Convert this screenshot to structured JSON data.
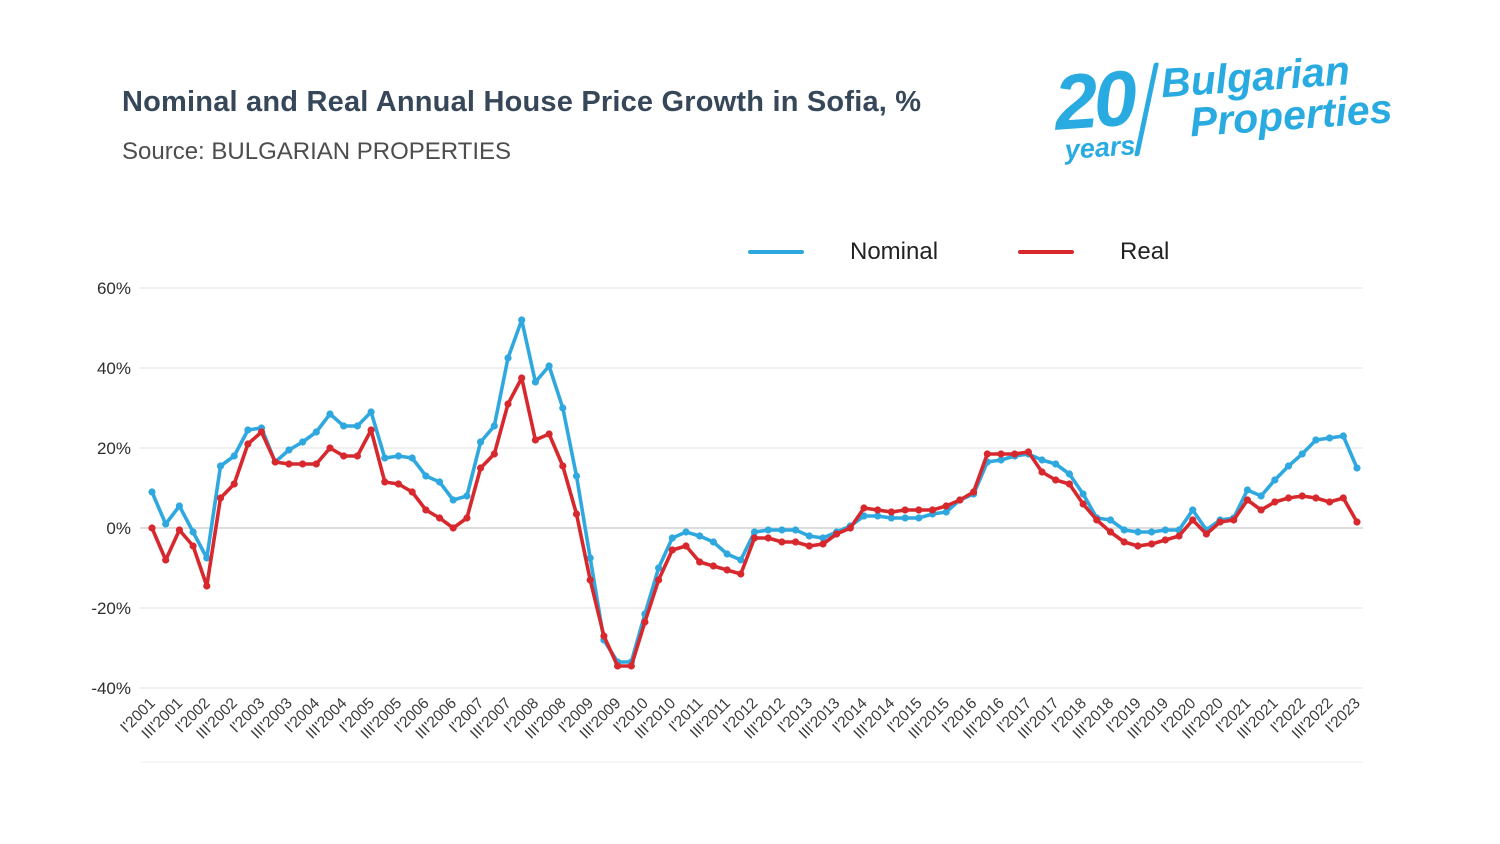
{
  "header": {
    "title": "Nominal and Real Annual House Price Growth in Sofia, %",
    "source": "Source: BULGARIAN PROPERTIES"
  },
  "logo": {
    "number": "20",
    "years": "years",
    "brand_line1": "Bulgarian",
    "brand_line2": "Properties",
    "color": "#29abe2"
  },
  "legend": [
    {
      "label": "Nominal",
      "color": "#2fa8df"
    },
    {
      "label": "Real",
      "color": "#d7282e"
    }
  ],
  "chart_data": {
    "type": "line",
    "title": "Nominal and Real Annual House Price Growth in Sofia, %",
    "xlabel": "",
    "ylabel": "",
    "ylim": [
      -40,
      60
    ],
    "grid": "horizontal",
    "legend_position": "top",
    "y_ticks": [
      {
        "v": 60,
        "label": "60%"
      },
      {
        "v": 40,
        "label": "40%"
      },
      {
        "v": 20,
        "label": "20%"
      },
      {
        "v": 0,
        "label": "0%"
      },
      {
        "v": -20,
        "label": "-20%"
      },
      {
        "v": -40,
        "label": "-40%"
      }
    ],
    "points_per_tick": 2,
    "x_tick_labels": [
      "I'2001",
      "III'2001",
      "I'2002",
      "III'2002",
      "I'2003",
      "III'2003",
      "I'2004",
      "III'2004",
      "I'2005",
      "III'2005",
      "I'2006",
      "III'2006",
      "I'2007",
      "III'2007",
      "I'2008",
      "III'2008",
      "I'2009",
      "III'2009",
      "I'2010",
      "III'2010",
      "I'2011",
      "III'2011",
      "I'2012",
      "III'2012",
      "I'2013",
      "III'2013",
      "I'2014",
      "III'2014",
      "I'2015",
      "III'2015",
      "I'2016",
      "III'2016",
      "I'2017",
      "III'2017",
      "I'2018",
      "III'2018",
      "I'2019",
      "III'2019",
      "I'2020",
      "III'2020",
      "I'2021",
      "III'2021",
      "I'2022",
      "III'2022",
      "I'2023"
    ],
    "series": [
      {
        "name": "Nominal",
        "color": "#2fa8df",
        "values": [
          9,
          1,
          5.5,
          -1,
          -7.5,
          15.5,
          18,
          24.5,
          25,
          16.5,
          19.5,
          21.5,
          24,
          28.5,
          25.5,
          25.5,
          29,
          17.5,
          18,
          17.5,
          13,
          11.5,
          7,
          8,
          21.5,
          25.5,
          42.5,
          52,
          36.5,
          40.5,
          30,
          13,
          -7.5,
          -28,
          -33.5,
          -33.5,
          -21.5,
          -10,
          -2.5,
          -1,
          -2,
          -3.5,
          -6.5,
          -8,
          -1,
          -0.5,
          -0.5,
          -0.5,
          -2,
          -2.5,
          -1,
          0.5,
          3,
          3,
          2.5,
          2.5,
          2.5,
          3.5,
          4,
          7,
          8.5,
          16.5,
          17,
          18,
          18.5,
          17,
          16,
          13.5,
          8.5,
          2.5,
          2,
          -0.5,
          -1,
          -1,
          -0.5,
          -0.5,
          4.5,
          -0.5,
          2,
          2.5,
          9.5,
          8,
          12,
          15.5,
          18.5,
          22,
          22.5,
          23,
          15
        ]
      },
      {
        "name": "Real",
        "color": "#d7282e",
        "values": [
          0,
          -8,
          -0.5,
          -4.5,
          -14.5,
          7.5,
          11,
          21,
          24,
          16.5,
          16,
          16,
          16,
          20,
          18,
          18,
          24.5,
          11.5,
          11,
          9,
          4.5,
          2.5,
          0,
          2.5,
          15,
          18.5,
          31,
          37.5,
          22,
          23.5,
          15.5,
          3.5,
          -13,
          -27,
          -34.5,
          -34.5,
          -23.5,
          -13,
          -5.5,
          -4.5,
          -8.5,
          -9.5,
          -10.5,
          -11.5,
          -2.5,
          -2.5,
          -3.5,
          -3.5,
          -4.5,
          -4,
          -1.5,
          0,
          5,
          4.5,
          4,
          4.5,
          4.5,
          4.5,
          5.5,
          7,
          9,
          18.5,
          18.5,
          18.5,
          19,
          14,
          12,
          11,
          6,
          2,
          -1,
          -3.5,
          -4.5,
          -4,
          -3,
          -2,
          2,
          -1.5,
          1.5,
          2,
          7,
          4.5,
          6.5,
          7.5,
          8,
          7.5,
          6.5,
          7.5,
          1.5
        ]
      }
    ]
  }
}
